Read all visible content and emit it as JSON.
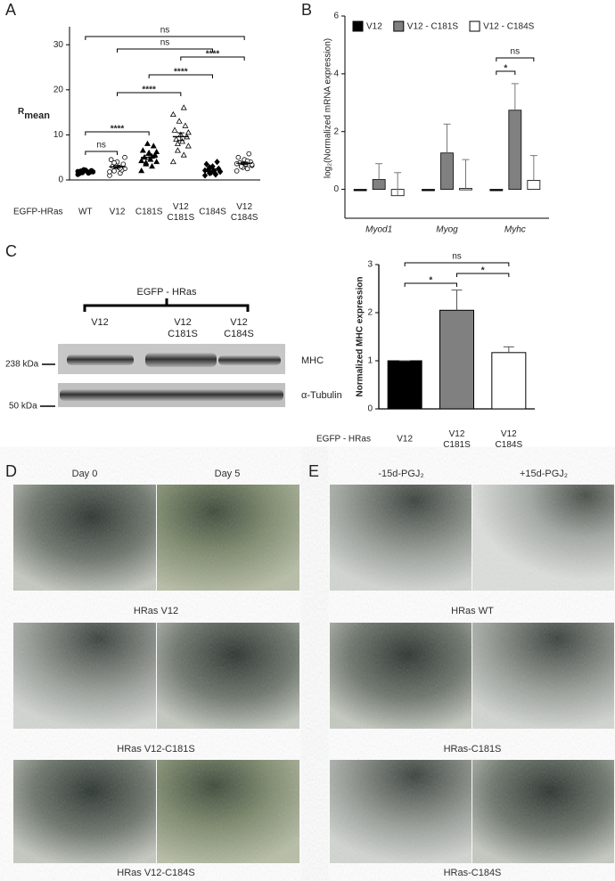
{
  "panel_letters": [
    "A",
    "B",
    "C",
    "D",
    "E"
  ],
  "chart_data": [
    {
      "type": "dotplot",
      "y_label": "R",
      "y_label_subscript": "mean",
      "row_label": "EGFP-HRas",
      "categories": [
        "WT",
        "V12",
        "C181S",
        "V12 C181S",
        "C184S",
        "V12 C184S"
      ],
      "markers": [
        "filled-circle",
        "open-circle",
        "filled-triangle",
        "open-triangle",
        "filled-diamond",
        "open-circle"
      ],
      "color": "#000000",
      "points": [
        [
          1.2,
          1.5,
          1.6,
          1.8,
          1.9,
          2.0,
          2.1,
          2.2,
          1.4,
          1.7,
          2.3,
          1.9,
          1.6,
          2.0,
          1.8
        ],
        [
          1.0,
          1.5,
          2.0,
          2.5,
          2.8,
          3.0,
          3.5,
          4.0,
          4.5,
          2.2,
          3.2,
          1.8,
          2.6,
          3.8,
          5.0
        ],
        [
          2.0,
          3.0,
          3.5,
          4.0,
          4.5,
          5.0,
          5.5,
          6.0,
          6.5,
          7.5,
          8.0,
          4.2,
          5.2,
          3.8,
          6.2
        ],
        [
          4.0,
          5.5,
          6.5,
          7.5,
          8.5,
          9.0,
          9.5,
          10.0,
          11.0,
          12.0,
          13.0,
          14.5,
          16.0,
          8.0,
          10.5
        ],
        [
          1.0,
          1.3,
          1.5,
          1.8,
          2.0,
          2.2,
          2.5,
          3.0,
          3.5,
          4.0,
          1.6,
          2.1,
          1.2,
          2.8,
          1.9
        ],
        [
          2.0,
          2.5,
          3.0,
          3.2,
          3.5,
          3.8,
          4.0,
          4.5,
          5.0,
          5.8,
          2.8,
          3.6,
          4.2,
          3.0,
          3.4
        ]
      ],
      "means": [
        1.8,
        2.9,
        5.0,
        9.6,
        2.2,
        3.7
      ],
      "sem": [
        0.1,
        0.3,
        0.45,
        0.85,
        0.25,
        0.25
      ],
      "ylim": [
        0,
        34
      ],
      "yticks": [
        0,
        10,
        20,
        30
      ],
      "significance": [
        {
          "between": [
            0,
            1
          ],
          "label": "ns"
        },
        {
          "between": [
            0,
            2
          ],
          "label": "****"
        },
        {
          "between": [
            1,
            3
          ],
          "label": "****"
        },
        {
          "between": [
            2,
            4
          ],
          "label": "****"
        },
        {
          "between": [
            3,
            5
          ],
          "label": "****"
        },
        {
          "between": [
            1,
            4
          ],
          "label": "ns"
        },
        {
          "between": [
            0,
            5
          ],
          "label": "ns"
        }
      ]
    },
    {
      "type": "bar",
      "y_label": "log₂(Normalized mRNA expression)",
      "categories": [
        "Myod1",
        "Myog",
        "Myhc"
      ],
      "series": [
        {
          "name": "V12",
          "color": "#000000",
          "values": [
            0,
            0,
            0
          ]
        },
        {
          "name": "V12 - C181S",
          "color": "#808080",
          "values": [
            0.34,
            1.26,
            2.74
          ],
          "errors": [
            0.55,
            1.0,
            0.92
          ]
        },
        {
          "name": "V12 - C184S",
          "color": "#ffffff",
          "values": [
            -0.22,
            0.03,
            0.31
          ],
          "errors": [
            0.8,
            1.0,
            0.86
          ]
        }
      ],
      "ylim": [
        -1,
        6
      ],
      "yticks": [
        0,
        2,
        4,
        6
      ],
      "significance": [
        {
          "category": 2,
          "between": [
            0,
            1
          ],
          "label": "*"
        },
        {
          "category": 2,
          "between": [
            0,
            2
          ],
          "label": "ns"
        }
      ]
    },
    {
      "type": "bar",
      "y_label": "Normalized MHC expression",
      "row_label": "EGFP - HRas",
      "categories": [
        "V12",
        "V12 C181S",
        "V12 C184S"
      ],
      "colors": [
        "#000000",
        "#808080",
        "#ffffff"
      ],
      "values": [
        1,
        2.05,
        1.17
      ],
      "errors": [
        0,
        0.42,
        0.12
      ],
      "ylim": [
        0,
        3
      ],
      "yticks": [
        0,
        1,
        2,
        3
      ],
      "significance": [
        {
          "between": [
            0,
            1
          ],
          "label": "*"
        },
        {
          "between": [
            1,
            2
          ],
          "label": "*"
        },
        {
          "between": [
            0,
            2
          ],
          "label": "ns"
        }
      ]
    }
  ],
  "blot": {
    "title": "EGFP - HRas",
    "lanes": [
      "V12",
      "V12 C181S",
      "V12 C184S"
    ],
    "markers": [
      "238 kDa",
      "50 kDa"
    ],
    "bands": [
      "MHC",
      "α-Tubulin"
    ]
  },
  "panel_d": {
    "columns": [
      "Day 0",
      "Day 5"
    ],
    "rows": [
      "HRas V12",
      "HRas V12-C181S",
      "HRas V12-C184S"
    ]
  },
  "panel_e": {
    "columns": [
      "-15d-PGJ₂",
      "+15d-PGJ₂"
    ],
    "rows": [
      "HRas WT",
      "HRas-C181S",
      "HRas-C184S"
    ]
  }
}
